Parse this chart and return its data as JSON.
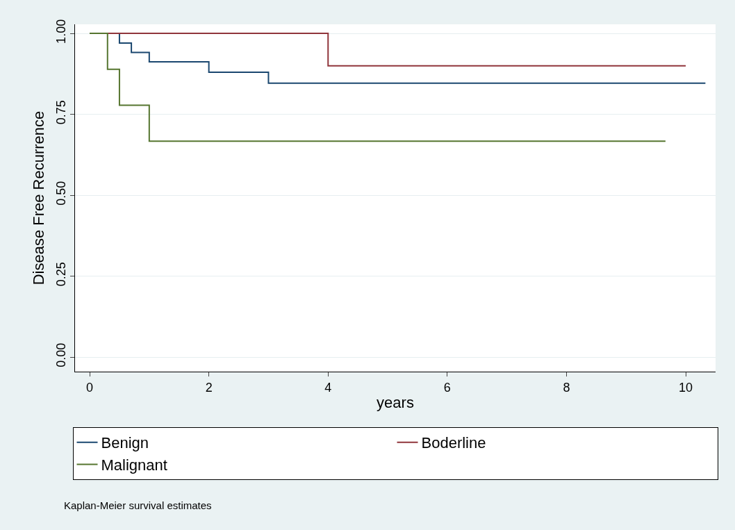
{
  "chart_data": {
    "type": "step",
    "xlabel": "years",
    "ylabel": "Disease Free Recurrence",
    "xlim": [
      -0.245,
      10.5
    ],
    "xticks": [
      0,
      2,
      4,
      6,
      8,
      10
    ],
    "ylim": [
      -0.045,
      1.028
    ],
    "yticks": [
      {
        "value": 0,
        "label": "0.00"
      },
      {
        "value": 0.25,
        "label": "0.25"
      },
      {
        "value": 0.5,
        "label": "0.50"
      },
      {
        "value": 0.75,
        "label": "0.75"
      },
      {
        "value": 1,
        "label": "1.00"
      }
    ],
    "grid": "y",
    "legend": "bottom",
    "line_style": "solid",
    "marker": "none",
    "series": [
      {
        "name": "Benign",
        "color": "#1a476f",
        "x": [
          0,
          0.5,
          0.7,
          1,
          2,
          3,
          10.33
        ],
        "values": [
          1,
          0.97,
          0.941,
          0.912,
          0.88,
          0.846,
          0.846
        ]
      },
      {
        "name": "Boderline",
        "color": "#90353b",
        "x": [
          0,
          4,
          10
        ],
        "values": [
          1,
          0.9,
          0.9
        ]
      },
      {
        "name": "Malignant",
        "color": "#55752f",
        "x": [
          0,
          0.3,
          0.5,
          1,
          9.66
        ],
        "values": [
          1,
          0.889,
          0.778,
          0.667,
          0.667
        ]
      }
    ],
    "annotations": [
      "Kaplan-Meier survival estimates"
    ]
  }
}
